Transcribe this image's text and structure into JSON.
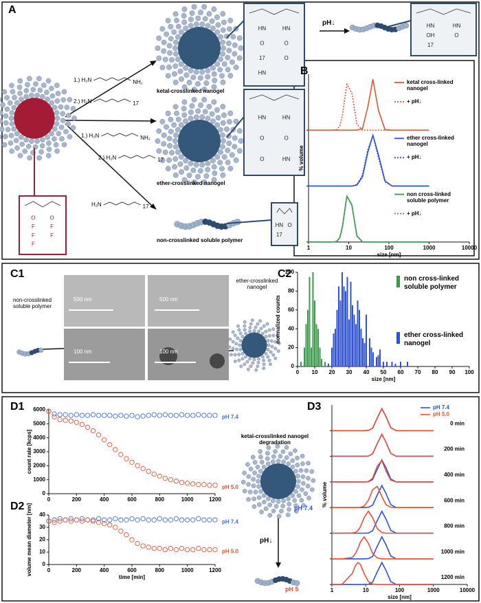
{
  "panel_a": {
    "label": "A",
    "reagents": [
      {
        "prefix": "1.) H₂N",
        "suffix": "NH₂"
      },
      {
        "prefix": "2.) H₂N",
        "suffix": "17"
      },
      {
        "prefix": "1.) H₂N",
        "suffix": "NH₂"
      },
      {
        "prefix": "2.) H₂N",
        "suffix": "17"
      },
      {
        "prefix": "H₂N",
        "suffix": "17"
      }
    ],
    "products": [
      "ketal-crosslinked nanogel",
      "ether-crosslinked nanogel",
      "non-crosslinked soluble polymer"
    ],
    "arrow_label": "pH↓",
    "structures": [
      [
        "HN",
        "HN",
        "O",
        "O",
        "17",
        "O",
        "HN"
      ],
      [
        "HN",
        "HN",
        "O",
        "O",
        "O",
        "HN"
      ],
      [
        "HN",
        "O",
        "17"
      ],
      [
        "HN",
        "HN",
        "OH",
        "O",
        "17"
      ],
      [
        "O",
        "O",
        "F",
        "F",
        "F",
        "F",
        "F"
      ]
    ]
  },
  "panel_c1": {
    "label": "C1",
    "left_label": "non-crosslinked soluble polymer",
    "right_label": "ether-crosslinked nanogel",
    "scale_bars": [
      "500 nm",
      "500 nm",
      "100 nm",
      "100 nm"
    ]
  },
  "panel_d": {
    "caption": "ketal-crosslinked nanogel degradation",
    "top_ph": "pH 7.4",
    "arrow_label": "pH↓",
    "bottom_ph": "pH 5"
  },
  "chart_data": [
    {
      "type": "rows",
      "label": "B",
      "y_label": "% volume",
      "x_label": "size [nm]",
      "xscale": "log",
      "x": [
        1,
        2,
        4,
        5,
        6,
        7,
        9,
        12,
        16,
        22,
        30,
        40,
        55,
        80,
        120,
        1000
      ],
      "xlim": [
        1,
        10000
      ],
      "xticks": [
        1,
        10,
        100,
        1000,
        10000
      ],
      "ylim": [
        0,
        100
      ],
      "rows": [
        {
          "series": [
            {
              "name": "ketal cross-linked nanogel",
              "color": "#e8502f",
              "dash": false,
              "values": [
                0,
                0,
                0,
                0,
                0,
                0,
                0,
                0,
                0,
                3,
                46,
                100,
                39,
                1,
                0,
                0
              ]
            },
            {
              "name": "+ pH↓",
              "color": "#e8502f",
              "dash": true,
              "values": [
                0,
                0,
                0,
                1,
                8,
                30,
                90,
                73,
                12,
                0,
                0,
                0,
                0,
                0,
                0,
                0
              ]
            }
          ]
        },
        {
          "series": [
            {
              "name": "ether cross-linked nanogel",
              "color": "#2b4fe0",
              "dash": false,
              "values": [
                0,
                0,
                0,
                0,
                0,
                0,
                0,
                0,
                2,
                18,
                67,
                100,
                61,
                10,
                0,
                0
              ]
            },
            {
              "name": "+ pH↓",
              "color": "#2b4fe0",
              "dash": true,
              "values": [
                0,
                0,
                0,
                0,
                0,
                0,
                0,
                0,
                3,
                22,
                72,
                99,
                56,
                8,
                0,
                0
              ]
            }
          ]
        },
        {
          "series": [
            {
              "name": "non cross-linked soluble polymer",
              "color": "#3a9a4a",
              "dash": false,
              "values": [
                0,
                0,
                0,
                1,
                8,
                30,
                90,
                73,
                12,
                0,
                0,
                0,
                0,
                0,
                0,
                0
              ]
            },
            {
              "name": "+ pH↓",
              "color": "#3a9a4a",
              "dash": true,
              "values": [
                0,
                0,
                0,
                1,
                9,
                32,
                91,
                71,
                11,
                0,
                0,
                0,
                0,
                0,
                0,
                0
              ]
            }
          ]
        }
      ]
    },
    {
      "type": "bar",
      "label": "C2",
      "y_label": "normalized counts",
      "x_label": "size [nm]",
      "xlim": [
        0,
        100
      ],
      "xticks": [
        0,
        10,
        20,
        30,
        40,
        50,
        60,
        70,
        80,
        90,
        100
      ],
      "ylim": [
        0,
        100
      ],
      "yticks": [
        0,
        20,
        40,
        60,
        80,
        100
      ],
      "series": [
        {
          "name": "non cross-linked soluble polymer",
          "color": "#3a9a4a",
          "x": [
            2,
            4,
            5,
            6,
            7,
            8,
            9,
            10,
            11,
            12,
            13,
            14,
            16
          ],
          "values": [
            5,
            20,
            45,
            60,
            95,
            20,
            100,
            70,
            45,
            40,
            20,
            8,
            5
          ]
        },
        {
          "name": "ether cross-linked nanogel",
          "color": "#2b4fe0",
          "x": [
            18,
            20,
            21,
            22,
            23,
            24,
            25,
            26,
            27,
            28,
            29,
            30,
            31,
            32,
            33,
            34,
            35,
            36,
            37,
            38,
            39,
            40,
            42,
            43,
            44,
            46,
            47,
            48,
            50,
            52,
            55,
            57,
            60,
            64
          ],
          "values": [
            3,
            20,
            35,
            40,
            60,
            85,
            70,
            100,
            85,
            80,
            95,
            50,
            90,
            65,
            55,
            45,
            70,
            60,
            40,
            30,
            25,
            55,
            30,
            20,
            15,
            10,
            12,
            18,
            5,
            5,
            5,
            3,
            5,
            5
          ]
        }
      ]
    },
    {
      "type": "scatter",
      "label": "D1",
      "y_label": "count rate [kcps]",
      "x": [
        0,
        40,
        80,
        120,
        160,
        200,
        240,
        280,
        320,
        360,
        400,
        440,
        480,
        520,
        560,
        600,
        640,
        680,
        720,
        760,
        800,
        840,
        880,
        920,
        960,
        1000,
        1040,
        1080,
        1120,
        1160,
        1200
      ],
      "xlim": [
        0,
        1200
      ],
      "xticks": [
        0,
        200,
        400,
        600,
        800,
        1000,
        1200
      ],
      "ylim": [
        0,
        6000
      ],
      "yticks": [
        0,
        1000,
        2000,
        3000,
        4000,
        5000,
        6000
      ],
      "series": [
        {
          "name": "pH 7.4",
          "color": "#3a6fe0",
          "values": [
            5900,
            5700,
            5650,
            5650,
            5600,
            5650,
            5600,
            5600,
            5650,
            5600,
            5600,
            5600,
            5550,
            5600,
            5550,
            5600,
            5500,
            5550,
            5600,
            5650,
            5600,
            5650,
            5600,
            5600,
            5650,
            5600,
            5600,
            5650,
            5600,
            5600,
            5600
          ]
        },
        {
          "name": "pH 5.0",
          "color": "#e8502f",
          "values": [
            5900,
            5500,
            5300,
            5250,
            5200,
            5100,
            4950,
            4750,
            4500,
            4200,
            3850,
            3500,
            3150,
            2800,
            2500,
            2250,
            2000,
            1800,
            1600,
            1400,
            1250,
            1100,
            1000,
            900,
            800,
            750,
            700,
            650,
            650,
            600,
            600
          ]
        }
      ]
    },
    {
      "type": "scatter",
      "label": "D2",
      "y_label": "volume mean diameter [nm]",
      "x_label": "time [min]",
      "x": [
        0,
        40,
        80,
        120,
        160,
        200,
        240,
        280,
        320,
        360,
        400,
        440,
        480,
        520,
        560,
        600,
        640,
        680,
        720,
        760,
        800,
        840,
        880,
        920,
        960,
        1000,
        1040,
        1080,
        1120,
        1160,
        1200
      ],
      "xlim": [
        0,
        1200
      ],
      "xticks": [
        0,
        200,
        400,
        600,
        800,
        1000,
        1200
      ],
      "ylim": [
        0,
        40
      ],
      "yticks": [
        0,
        10,
        20,
        30,
        40
      ],
      "series": [
        {
          "name": "pH 7.4",
          "color": "#3a6fe0",
          "values": [
            35,
            36,
            37,
            36,
            37,
            36,
            37,
            36,
            36,
            37,
            36,
            36,
            37,
            36,
            36,
            37,
            36,
            37,
            36,
            36,
            37,
            36,
            36,
            37,
            36,
            36,
            36,
            37,
            36,
            36,
            36
          ]
        },
        {
          "name": "pH 5.0",
          "color": "#e8502f",
          "values": [
            35,
            34,
            35,
            36,
            35,
            36,
            35,
            36,
            35,
            34,
            33,
            32,
            30,
            27,
            24,
            20,
            17,
            15,
            14,
            13,
            13,
            12,
            13,
            12,
            13,
            12,
            12,
            13,
            12,
            12,
            12
          ]
        }
      ]
    },
    {
      "type": "rows",
      "label": "D3",
      "y_label": "% volume",
      "x_label": "size [nm]",
      "xscale": "log",
      "x": [
        1,
        2,
        4,
        5,
        6,
        7,
        9,
        12,
        16,
        22,
        30,
        40,
        55,
        80,
        120,
        1000
      ],
      "xlim": [
        1,
        10000
      ],
      "xticks": [
        1,
        10,
        100,
        1000,
        10000
      ],
      "ylim": [
        0,
        100
      ],
      "legend": [
        {
          "name": "pH 7.4",
          "color": "#2b4fe0"
        },
        {
          "name": "pH 5.0",
          "color": "#e8502f"
        }
      ],
      "rows": [
        {
          "name": "0 min",
          "series": [
            {
              "values": [
                0,
                0,
                0,
                0,
                0,
                0,
                0,
                1,
                11,
                58,
                100,
                63,
                13,
                0,
                0,
                0
              ]
            },
            {
              "values": [
                0,
                0,
                0,
                0,
                0,
                0,
                0,
                1,
                11,
                58,
                100,
                63,
                13,
                0,
                0,
                0
              ]
            }
          ]
        },
        {
          "name": "200 min",
          "series": [
            {
              "values": [
                0,
                0,
                0,
                0,
                0,
                0,
                0,
                1,
                11,
                58,
                100,
                63,
                13,
                0,
                0,
                0
              ]
            },
            {
              "values": [
                0,
                0,
                0,
                0,
                0,
                0,
                0,
                1,
                11,
                58,
                100,
                63,
                13,
                0,
                0,
                0
              ]
            }
          ]
        },
        {
          "name": "400 min",
          "series": [
            {
              "values": [
                0,
                0,
                0,
                0,
                0,
                0,
                0,
                1,
                11,
                58,
                100,
                63,
                13,
                0,
                0,
                0
              ]
            },
            {
              "values": [
                0,
                0,
                0,
                0,
                0,
                0,
                0,
                2,
                17,
                72,
                97,
                49,
                8,
                0,
                0,
                0
              ]
            }
          ]
        },
        {
          "name": "600 min",
          "series": [
            {
              "values": [
                0,
                0,
                0,
                0,
                0,
                0,
                0,
                1,
                11,
                58,
                100,
                63,
                13,
                0,
                0,
                0
              ]
            },
            {
              "values": [
                0,
                0,
                0,
                0,
                0,
                1,
                7,
                33,
                81,
                96,
                50,
                13,
                1,
                0,
                0,
                0
              ]
            }
          ]
        },
        {
          "name": "800 min",
          "series": [
            {
              "values": [
                0,
                0,
                0,
                0,
                0,
                0,
                0,
                1,
                11,
                58,
                100,
                63,
                13,
                0,
                0,
                0
              ]
            },
            {
              "values": [
                0,
                0,
                1,
                4,
                13,
                30,
                71,
                100,
                71,
                21,
                3,
                0,
                0,
                0,
                0,
                0
              ]
            }
          ]
        },
        {
          "name": "1000 min",
          "series": [
            {
              "values": [
                0,
                0,
                0,
                0,
                0,
                0,
                0,
                1,
                11,
                58,
                100,
                63,
                13,
                0,
                0,
                0
              ]
            },
            {
              "values": [
                0,
                0,
                6,
                24,
                50,
                77,
                100,
                71,
                25,
                4,
                0,
                0,
                0,
                0,
                0,
                0
              ]
            }
          ]
        },
        {
          "name": "1200 min",
          "series": [
            {
              "values": [
                0,
                0,
                0,
                0,
                0,
                0,
                0,
                1,
                11,
                58,
                100,
                63,
                13,
                0,
                0,
                0
              ]
            },
            {
              "values": [
                0,
                1,
                50,
                87,
                100,
                90,
                50,
                13,
                2,
                0,
                0,
                0,
                0,
                0,
                0,
                0
              ]
            }
          ]
        }
      ]
    }
  ]
}
